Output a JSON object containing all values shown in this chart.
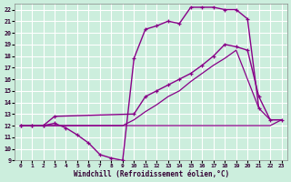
{
  "xlabel": "Windchill (Refroidissement éolien,°C)",
  "bg_color": "#cceedd",
  "grid_color": "#ffffff",
  "line_color": "#880088",
  "xlim": [
    -0.5,
    23.5
  ],
  "ylim": [
    9,
    22.5
  ],
  "yticks": [
    9,
    10,
    11,
    12,
    13,
    14,
    15,
    16,
    17,
    18,
    19,
    20,
    21,
    22
  ],
  "xticks": [
    0,
    1,
    2,
    3,
    4,
    5,
    6,
    7,
    8,
    9,
    10,
    11,
    12,
    13,
    14,
    15,
    16,
    17,
    18,
    19,
    20,
    21,
    22,
    23
  ],
  "line1_x": [
    0,
    1,
    2,
    3,
    4,
    5,
    6,
    7,
    8,
    9,
    10,
    11,
    12,
    13,
    14,
    15,
    16,
    17,
    18,
    19,
    20,
    21,
    22,
    23
  ],
  "line1_y": [
    12,
    12,
    12,
    12,
    12,
    12,
    12,
    12,
    12,
    12,
    12,
    12,
    12,
    12,
    12,
    12,
    12,
    12,
    12,
    12,
    12,
    12,
    12,
    12.5
  ],
  "line2_x": [
    0,
    1,
    2,
    3,
    4,
    5,
    6,
    7,
    8,
    9,
    10,
    11,
    12,
    13,
    14,
    15,
    16,
    17,
    18,
    19,
    20,
    21,
    22,
    23
  ],
  "line2_y": [
    12,
    12,
    12,
    12,
    12,
    12,
    12,
    12,
    12,
    12,
    12.5,
    13.2,
    13.8,
    14.5,
    15.0,
    15.8,
    16.5,
    17.2,
    17.8,
    18.5,
    16.0,
    13.5,
    12.5,
    12.5
  ],
  "line3_x": [
    0,
    1,
    2,
    3,
    4,
    5,
    6,
    7,
    8,
    9,
    10,
    11,
    12,
    13,
    14,
    15,
    16,
    17,
    18,
    19,
    20,
    21
  ],
  "line3_y": [
    12,
    12,
    12,
    12.2,
    11.8,
    11.2,
    10.5,
    9.5,
    9.2,
    9.0,
    17.8,
    20.3,
    20.6,
    21.0,
    20.8,
    22.2,
    22.2,
    22.2,
    22.0,
    22.0,
    21.2,
    13.5
  ],
  "line4_x": [
    0,
    1,
    2,
    3,
    10,
    11,
    12,
    13,
    14,
    15,
    16,
    17,
    18,
    19,
    20,
    21,
    22,
    23
  ],
  "line4_y": [
    12,
    12,
    12,
    12.8,
    13.0,
    14.5,
    15.0,
    15.5,
    16.0,
    16.5,
    17.2,
    18.0,
    19.0,
    18.8,
    18.5,
    14.5,
    12.5,
    12.5
  ]
}
